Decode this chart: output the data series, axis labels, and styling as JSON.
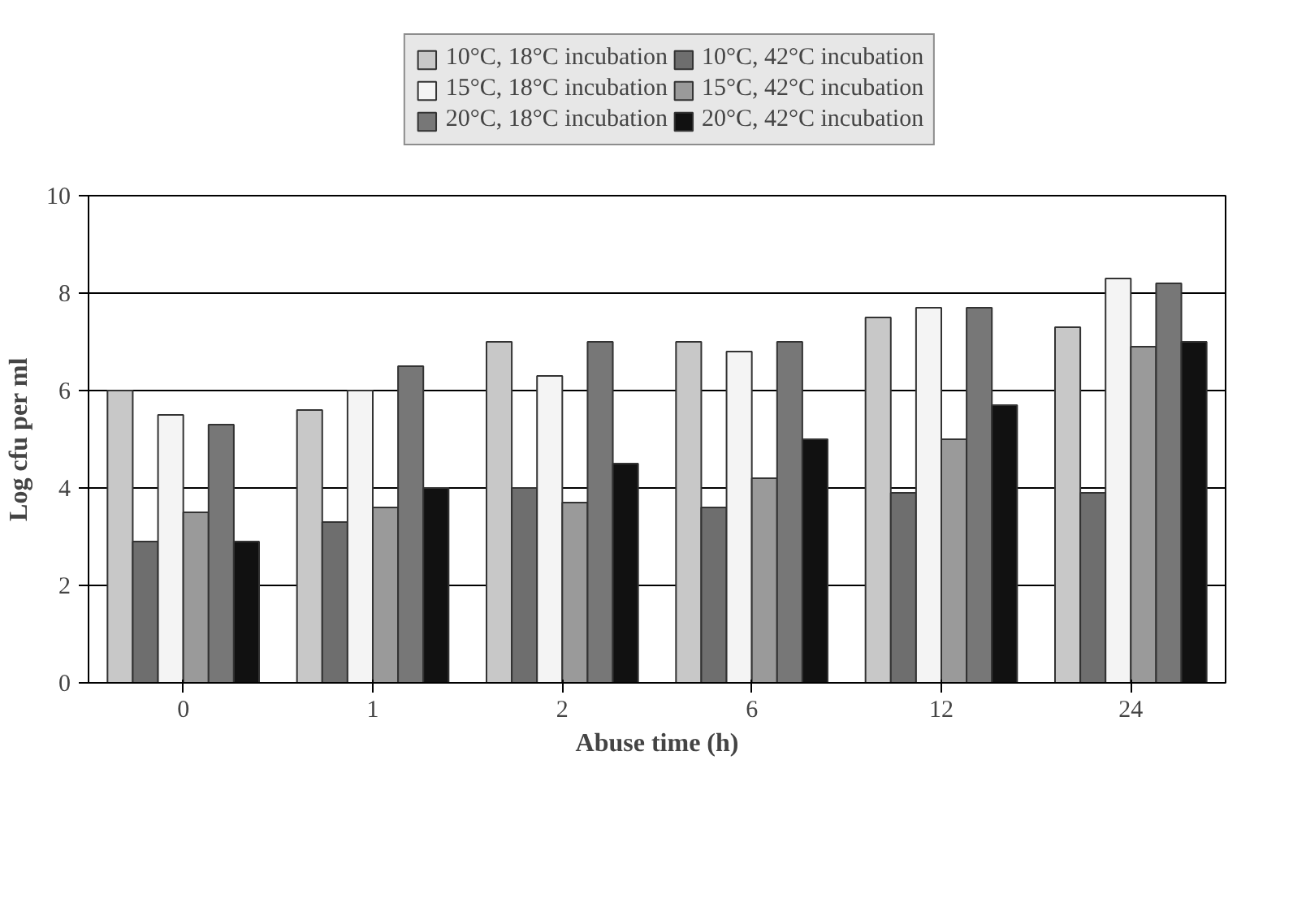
{
  "chart_data": {
    "type": "bar",
    "xlabel": "Abuse time (h)",
    "ylabel": "Log cfu per ml",
    "categories": [
      "0",
      "1",
      "2",
      "6",
      "12",
      "24"
    ],
    "series": [
      {
        "name": "10°C, 18°C incubation",
        "color": "#c8c8c8",
        "values": [
          6.0,
          5.6,
          7.0,
          7.0,
          7.5,
          7.3
        ]
      },
      {
        "name": "10°C, 42°C incubation",
        "color": "#6e6e6e",
        "values": [
          2.9,
          3.3,
          4.0,
          3.6,
          3.9,
          3.9
        ]
      },
      {
        "name": "15°C, 18°C incubation",
        "color": "#f4f4f4",
        "values": [
          5.5,
          6.0,
          6.3,
          6.8,
          7.7,
          8.3
        ]
      },
      {
        "name": "15°C, 42°C incubation",
        "color": "#9a9a9a",
        "values": [
          3.5,
          3.6,
          3.7,
          4.2,
          5.0,
          6.9
        ]
      },
      {
        "name": "20°C, 18°C incubation",
        "color": "#777777",
        "values": [
          5.3,
          6.5,
          7.0,
          7.0,
          7.7,
          8.2
        ]
      },
      {
        "name": "20°C, 42°C incubation",
        "color": "#111111",
        "values": [
          2.9,
          4.0,
          4.5,
          5.0,
          5.7,
          7.0
        ]
      }
    ],
    "ylim": [
      0,
      10
    ],
    "yticks": [
      0,
      2,
      4,
      6,
      8,
      10
    ],
    "grid": "y",
    "legend": "top"
  }
}
